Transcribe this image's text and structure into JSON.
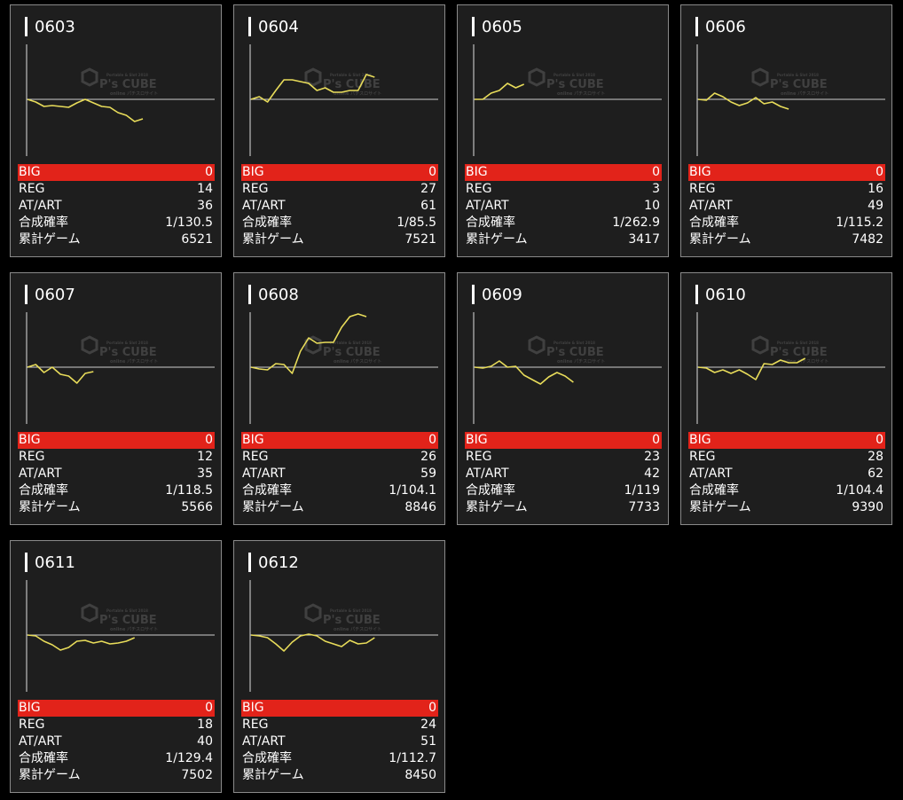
{
  "machines": [
    {
      "id": "0603",
      "big": "0",
      "reg": "14",
      "at": "36",
      "rate": "1/130.5",
      "games": "6521",
      "curve": [
        0,
        3,
        8,
        7,
        8,
        9,
        4,
        0,
        4,
        8,
        9,
        15,
        18,
        25,
        22
      ]
    },
    {
      "id": "0604",
      "big": "0",
      "reg": "27",
      "at": "61",
      "rate": "1/85.5",
      "games": "7521",
      "curve": [
        0,
        -3,
        3,
        -10,
        -22,
        -22,
        -20,
        -18,
        -10,
        -13,
        -8,
        -8,
        -10,
        -10,
        -28,
        -25
      ]
    },
    {
      "id": "0605",
      "big": "0",
      "reg": "3",
      "at": "10",
      "rate": "1/262.9",
      "games": "3417",
      "curve": [
        0,
        0,
        -7,
        -10,
        -18,
        -13,
        -17
      ]
    },
    {
      "id": "0606",
      "big": "0",
      "reg": "16",
      "at": "49",
      "rate": "1/115.2",
      "games": "7482",
      "curve": [
        0,
        1,
        -7,
        -3,
        3,
        7,
        4,
        -2,
        5,
        3,
        8,
        11
      ]
    },
    {
      "id": "0607",
      "big": "0",
      "reg": "12",
      "at": "35",
      "rate": "1/118.5",
      "games": "5566",
      "curve": [
        0,
        -3,
        6,
        0,
        8,
        10,
        18,
        7,
        5
      ]
    },
    {
      "id": "0608",
      "big": "0",
      "reg": "26",
      "at": "59",
      "rate": "1/104.1",
      "games": "8846",
      "curve": [
        0,
        2,
        3,
        -4,
        -3,
        7,
        -18,
        -33,
        -27,
        -28,
        -28,
        -45,
        -57,
        -60,
        -57
      ]
    },
    {
      "id": "0609",
      "big": "0",
      "reg": "23",
      "at": "42",
      "rate": "1/119",
      "games": "7733",
      "curve": [
        0,
        1,
        -1,
        -7,
        0,
        -1,
        9,
        14,
        19,
        11,
        6,
        10,
        17
      ]
    },
    {
      "id": "0610",
      "big": "0",
      "reg": "28",
      "at": "62",
      "rate": "1/104.4",
      "games": "9390",
      "curve": [
        0,
        1,
        6,
        3,
        7,
        3,
        8,
        14,
        -4,
        -3,
        -8,
        -5,
        -5,
        -10
      ]
    },
    {
      "id": "0611",
      "big": "0",
      "reg": "18",
      "at": "40",
      "rate": "1/129.4",
      "games": "7502",
      "curve": [
        0,
        1,
        7,
        11,
        17,
        14,
        7,
        6,
        9,
        7,
        10,
        9,
        7,
        3
      ]
    },
    {
      "id": "0612",
      "big": "0",
      "reg": "24",
      "at": "51",
      "rate": "1/112.7",
      "games": "8450",
      "curve": [
        0,
        1,
        3,
        10,
        18,
        8,
        1,
        -1,
        1,
        7,
        10,
        13,
        6,
        10,
        9,
        3
      ]
    }
  ],
  "labels": {
    "big": "BIG",
    "reg": "REG",
    "at": "AT/ART",
    "rate": "合成確率",
    "games": "累計ゲーム"
  },
  "watermark": {
    "brand": "P's CUBE",
    "tagline": "Portable & Slot 2018",
    "sub": "online パチスロサイト"
  },
  "colors": {
    "line": "#e8dc5a",
    "big_bg": "#e2231a",
    "card_bg": "#1e1e1e"
  }
}
